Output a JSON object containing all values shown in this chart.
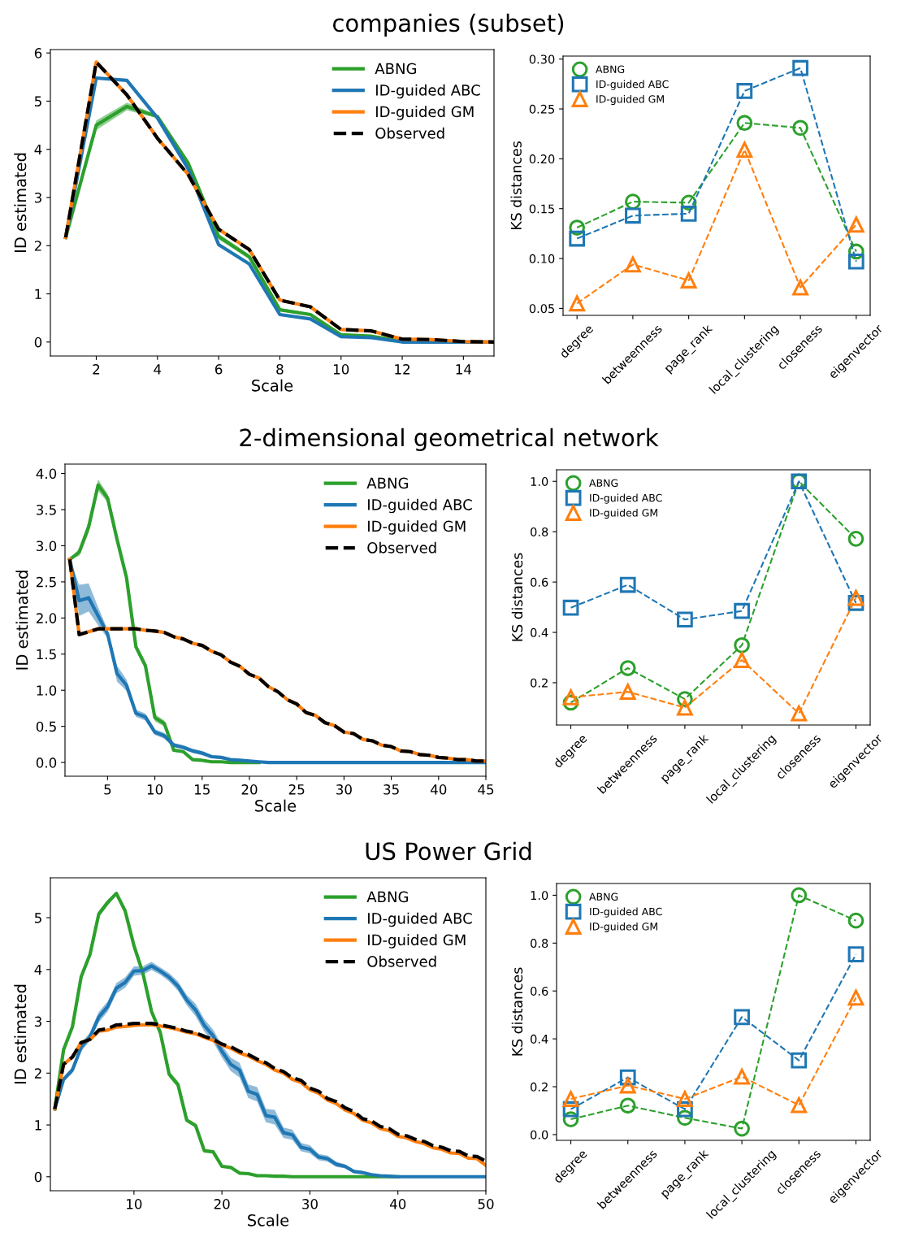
{
  "chart_data": [
    {
      "type": "line",
      "title": "companies (subset)",
      "xlabel": "Scale",
      "ylabel": "ID estimated",
      "legend": "top right",
      "xlim": [
        0.5,
        15
      ],
      "xticks": [
        2,
        4,
        6,
        8,
        10,
        12,
        14
      ],
      "ylim": [
        -0.29,
        6.07
      ],
      "yticks": [
        0,
        1,
        2,
        3,
        4,
        5,
        6
      ],
      "x": [
        1,
        2,
        3,
        4,
        5,
        6,
        7,
        8,
        9,
        10,
        11,
        12,
        13,
        14,
        15
      ],
      "series": [
        {
          "name": "ABNG",
          "color": "#2ca02c",
          "values": [
            2.17,
            4.5,
            4.89,
            4.68,
            3.72,
            2.19,
            1.77,
            0.67,
            0.57,
            0.15,
            0.12,
            0.02,
            0.01,
            null,
            null
          ],
          "lower": [
            2.17,
            4.4,
            4.81,
            4.65,
            3.69,
            2.13,
            1.72,
            0.64,
            0.54,
            0.13,
            0.1,
            0.01,
            0,
            null,
            null
          ],
          "upper": [
            2.17,
            4.6,
            4.97,
            4.71,
            3.75,
            2.25,
            1.82,
            0.7,
            0.6,
            0.17,
            0.14,
            0.03,
            0.02,
            null,
            null
          ]
        },
        {
          "name": "ID-guided ABC",
          "color": "#1f77b4",
          "values": [
            2.17,
            5.48,
            5.43,
            4.65,
            3.6,
            2.02,
            1.62,
            0.57,
            0.48,
            0.11,
            0.09,
            0,
            0,
            0,
            0
          ]
        },
        {
          "name": "ID-guided GM",
          "color": "#ff7f0e",
          "values": [
            2.17,
            5.81,
            5.13,
            4.23,
            3.48,
            2.34,
            1.92,
            0.87,
            0.73,
            0.26,
            0.23,
            0.06,
            0.05,
            0.01,
            0
          ]
        },
        {
          "name": "Observed",
          "color": "#000000",
          "line_style": "dashed",
          "values": [
            2.17,
            5.81,
            5.13,
            4.23,
            3.48,
            2.34,
            1.92,
            0.87,
            0.73,
            0.26,
            0.23,
            0.06,
            0.05,
            0.01,
            0
          ]
        }
      ]
    },
    {
      "type": "line",
      "ylabel": "KS distances",
      "legend": "top left",
      "line_style": "dashed",
      "ylim": [
        0.043,
        0.303
      ],
      "yticks": [
        0.05,
        {
          "value": 0.1,
          "label": "0.10"
        },
        0.15,
        {
          "value": 0.2,
          "label": "0.20"
        },
        0.25,
        {
          "value": 0.3,
          "label": "0.30"
        }
      ],
      "categories": [
        "degree",
        "betweenness",
        "page_rank",
        "local_clustering",
        "closeness",
        "eigenvector"
      ],
      "series": [
        {
          "name": "ABNG",
          "color": "#2ca02c",
          "marker": "circle",
          "values": [
            0.131,
            0.157,
            0.156,
            0.236,
            0.231,
            0.107
          ]
        },
        {
          "name": "ID-guided ABC",
          "color": "#1f77b4",
          "marker": "square",
          "values": [
            0.12,
            0.143,
            0.145,
            0.268,
            0.291,
            0.097
          ]
        },
        {
          "name": "ID-guided GM",
          "color": "#ff7f0e",
          "marker": "triangle",
          "values": [
            0.055,
            0.094,
            0.078,
            0.209,
            0.071,
            0.134
          ]
        }
      ]
    },
    {
      "type": "line",
      "title": "2-dimensional geometrical network",
      "xlabel": "Scale",
      "ylabel": "ID estimated",
      "legend": "top right",
      "xlim": [
        0.5,
        45
      ],
      "xticks": [
        5,
        10,
        15,
        20,
        25,
        30,
        35,
        40,
        45
      ],
      "ylim": [
        -0.19,
        4.13
      ],
      "yticks": [
        {
          "value": 0,
          "label": "0.0"
        },
        0.5,
        {
          "value": 1,
          "label": "1.0"
        },
        1.5,
        {
          "value": 2,
          "label": "2.0"
        },
        2.5,
        {
          "value": 3,
          "label": "3.0"
        },
        3.5,
        {
          "value": 4,
          "label": "4.0"
        }
      ],
      "x": [
        1,
        2,
        3,
        4,
        5,
        6,
        7,
        8,
        9,
        10,
        11,
        12,
        13,
        14,
        15,
        16,
        17,
        18,
        19,
        20,
        21,
        22,
        23,
        24,
        25,
        26,
        27,
        28,
        29,
        30,
        31,
        32,
        33,
        34,
        35,
        36,
        37,
        38,
        39,
        40,
        41,
        42,
        43,
        44,
        45
      ],
      "series": [
        {
          "name": "ABNG",
          "color": "#2ca02c",
          "values": [
            2.81,
            2.91,
            3.26,
            3.84,
            3.66,
            3.09,
            2.56,
            1.6,
            1.34,
            0.62,
            0.54,
            0.17,
            0.15,
            0.04,
            0.03,
            0.01,
            0.01,
            0,
            0,
            0,
            0,
            null,
            null,
            null,
            null,
            null,
            null,
            null,
            null,
            null,
            null,
            null,
            null,
            null,
            null,
            null,
            null,
            null,
            null,
            null,
            null,
            null,
            null,
            null,
            null
          ],
          "lower": [
            2.81,
            2.86,
            3.18,
            3.76,
            3.6,
            3.05,
            2.52,
            1.55,
            1.29,
            0.57,
            0.5,
            0.15,
            0.13,
            0.03,
            0.02,
            0,
            0,
            0,
            0,
            0,
            0,
            null,
            null,
            null,
            null,
            null,
            null,
            null,
            null,
            null,
            null,
            null,
            null,
            null,
            null,
            null,
            null,
            null,
            null,
            null,
            null,
            null,
            null,
            null,
            null
          ],
          "upper": [
            2.81,
            2.96,
            3.34,
            3.92,
            3.72,
            3.13,
            2.6,
            1.65,
            1.39,
            0.67,
            0.58,
            0.19,
            0.17,
            0.05,
            0.04,
            0.02,
            0.02,
            0,
            0,
            0,
            0,
            null,
            null,
            null,
            null,
            null,
            null,
            null,
            null,
            null,
            null,
            null,
            null,
            null,
            null,
            null,
            null,
            null,
            null,
            null,
            null,
            null,
            null,
            null,
            null
          ]
        },
        {
          "name": "ID-guided ABC",
          "color": "#1f77b4",
          "values": [
            2.81,
            2.24,
            2.28,
            2.03,
            1.78,
            1.23,
            1.07,
            0.68,
            0.63,
            0.42,
            0.37,
            0.24,
            0.21,
            0.16,
            0.13,
            0.08,
            0.07,
            0.04,
            0.03,
            0.02,
            0.01,
            0,
            0,
            0,
            0,
            0,
            0,
            0,
            0,
            0,
            0,
            0,
            0,
            0,
            0,
            0,
            0,
            0,
            0,
            0,
            0,
            0,
            0,
            0,
            0
          ],
          "lower": [
            2.81,
            2.03,
            2.09,
            1.9,
            1.72,
            1.12,
            0.99,
            0.63,
            0.58,
            0.38,
            0.33,
            0.21,
            0.18,
            0.13,
            0.1,
            0.06,
            0.05,
            0.03,
            0.02,
            0.01,
            0,
            0,
            0,
            0,
            0,
            0,
            0,
            0,
            0,
            0,
            0,
            0,
            0,
            0,
            0,
            0,
            0,
            0,
            0,
            0,
            0,
            0,
            0,
            0,
            0
          ],
          "upper": [
            2.81,
            2.46,
            2.48,
            2.15,
            1.84,
            1.34,
            1.15,
            0.73,
            0.68,
            0.46,
            0.41,
            0.27,
            0.24,
            0.19,
            0.16,
            0.1,
            0.09,
            0.05,
            0.04,
            0.03,
            0.02,
            0,
            0,
            0,
            0,
            0,
            0,
            0,
            0,
            0,
            0,
            0,
            0,
            0,
            0,
            0,
            0,
            0,
            0,
            0,
            0,
            0,
            0,
            0,
            0
          ]
        },
        {
          "name": "ID-guided GM",
          "color": "#ff7f0e",
          "values": [
            2.81,
            1.77,
            1.81,
            1.85,
            1.85,
            1.85,
            1.85,
            1.85,
            1.83,
            1.82,
            1.8,
            1.74,
            1.71,
            1.65,
            1.62,
            1.54,
            1.49,
            1.39,
            1.33,
            1.22,
            1.17,
            1.05,
            0.98,
            0.87,
            0.81,
            0.69,
            0.65,
            0.55,
            0.51,
            0.42,
            0.4,
            0.32,
            0.3,
            0.24,
            0.22,
            0.16,
            0.15,
            0.11,
            0.1,
            0.07,
            0.06,
            0.04,
            0.04,
            0.02,
            0.02
          ]
        },
        {
          "name": "Observed",
          "color": "#000000",
          "line_style": "dashed",
          "values": [
            2.81,
            1.77,
            1.81,
            1.85,
            1.85,
            1.85,
            1.85,
            1.85,
            1.83,
            1.82,
            1.8,
            1.74,
            1.71,
            1.65,
            1.62,
            1.54,
            1.49,
            1.39,
            1.33,
            1.22,
            1.17,
            1.05,
            0.98,
            0.87,
            0.81,
            0.69,
            0.65,
            0.55,
            0.51,
            0.42,
            0.4,
            0.32,
            0.3,
            0.24,
            0.22,
            0.16,
            0.15,
            0.11,
            0.1,
            0.07,
            0.06,
            0.04,
            0.04,
            0.02,
            0.02
          ]
        }
      ]
    },
    {
      "type": "line",
      "ylabel": "KS distances",
      "legend": "top left",
      "line_style": "dashed",
      "ylim": [
        0.032,
        1.046
      ],
      "yticks": [
        0.2,
        0.4,
        0.6,
        0.8,
        {
          "value": 1,
          "label": "1.0"
        }
      ],
      "categories": [
        "degree",
        "betweenness",
        "page_rank",
        "local_clustering",
        "closeness",
        "eigenvector"
      ],
      "series": [
        {
          "name": "ABNG",
          "color": "#2ca02c",
          "marker": "circle",
          "values": [
            0.121,
            0.258,
            0.135,
            0.349,
            1.0,
            0.772
          ]
        },
        {
          "name": "ID-guided ABC",
          "color": "#1f77b4",
          "marker": "square",
          "values": [
            0.498,
            0.589,
            0.451,
            0.485,
            1.0,
            0.517
          ]
        },
        {
          "name": "ID-guided GM",
          "color": "#ff7f0e",
          "marker": "triangle",
          "values": [
            0.142,
            0.164,
            0.101,
            0.29,
            0.078,
            0.537
          ]
        }
      ]
    },
    {
      "type": "line",
      "title": "US Power Grid",
      "xlabel": "Scale",
      "ylabel": "ID estimated",
      "legend": "top right",
      "xlim": [
        0.5,
        50
      ],
      "xticks": [
        10,
        20,
        30,
        40,
        50
      ],
      "ylim": [
        -0.27,
        5.77
      ],
      "yticks": [
        0,
        1,
        2,
        3,
        4,
        5
      ],
      "x": [
        1,
        2,
        3,
        4,
        5,
        6,
        7,
        8,
        9,
        10,
        11,
        12,
        13,
        14,
        15,
        16,
        17,
        18,
        19,
        20,
        21,
        22,
        23,
        24,
        25,
        26,
        27,
        28,
        29,
        30,
        31,
        32,
        33,
        34,
        35,
        36,
        37,
        38,
        39,
        40,
        41,
        42,
        43,
        44,
        45,
        46,
        47,
        48,
        49,
        50
      ],
      "series": [
        {
          "name": "ABNG",
          "color": "#2ca02c",
          "values": [
            1.31,
            2.45,
            2.89,
            3.86,
            4.29,
            5.07,
            5.29,
            5.47,
            5.13,
            4.46,
            3.94,
            3.19,
            2.78,
            1.98,
            1.78,
            1.09,
            0.99,
            0.5,
            0.48,
            0.2,
            0.18,
            0.07,
            0.06,
            0.02,
            0.02,
            0.01,
            0.01,
            0,
            0,
            0,
            0,
            0,
            0,
            0,
            0,
            0,
            0,
            0,
            0,
            0,
            null,
            null,
            null,
            null,
            null,
            null,
            null,
            null,
            null,
            null
          ],
          "lower": [
            1.31,
            2.4,
            2.84,
            3.8,
            4.23,
            5.01,
            5.23,
            5.44,
            5.1,
            4.43,
            3.91,
            3.16,
            2.74,
            1.92,
            1.72,
            1.05,
            0.95,
            0.47,
            0.45,
            0.18,
            0.16,
            0.06,
            0.05,
            0.01,
            0.01,
            0,
            0,
            0,
            0,
            0,
            0,
            0,
            0,
            0,
            0,
            0,
            0,
            0,
            0,
            0,
            null,
            null,
            null,
            null,
            null,
            null,
            null,
            null,
            null,
            null
          ],
          "upper": [
            1.31,
            2.5,
            2.94,
            3.92,
            4.35,
            5.13,
            5.35,
            5.5,
            5.16,
            4.49,
            3.97,
            3.22,
            2.82,
            2.04,
            1.84,
            1.13,
            1.03,
            0.53,
            0.51,
            0.22,
            0.2,
            0.08,
            0.07,
            0.03,
            0.03,
            0.02,
            0.02,
            0,
            0,
            0,
            0,
            0,
            0,
            0,
            0,
            0,
            0,
            0,
            0,
            0,
            null,
            null,
            null,
            null,
            null,
            null,
            null,
            null,
            null,
            null
          ]
        },
        {
          "name": "ID-guided ABC",
          "color": "#1f77b4",
          "values": [
            1.31,
            1.88,
            2.06,
            2.5,
            2.7,
            3.08,
            3.28,
            3.64,
            3.75,
            3.97,
            3.98,
            4.07,
            3.97,
            3.85,
            3.68,
            3.41,
            3.22,
            2.92,
            2.72,
            2.42,
            2.17,
            2.06,
            1.65,
            1.59,
            1.18,
            1.15,
            0.85,
            0.81,
            0.57,
            0.53,
            0.38,
            0.35,
            0.24,
            0.2,
            0.1,
            0.08,
            0.04,
            0.02,
            0.01,
            0,
            0,
            0,
            0,
            0,
            0,
            0,
            0,
            0,
            0,
            0
          ],
          "lower": [
            1.31,
            1.84,
            2.0,
            2.42,
            2.62,
            2.98,
            3.18,
            3.54,
            3.65,
            3.88,
            3.9,
            3.99,
            3.9,
            3.77,
            3.59,
            3.31,
            3.1,
            2.8,
            2.6,
            2.3,
            2.04,
            1.92,
            1.52,
            1.45,
            1.05,
            1.01,
            0.75,
            0.71,
            0.49,
            0.45,
            0.32,
            0.29,
            0.19,
            0.16,
            0.07,
            0.05,
            0.02,
            0.01,
            0,
            0,
            0,
            0,
            0,
            0,
            0,
            0,
            0,
            0,
            0,
            0
          ],
          "upper": [
            1.31,
            1.92,
            2.12,
            2.58,
            2.78,
            3.18,
            3.38,
            3.74,
            3.85,
            4.06,
            4.06,
            4.15,
            4.04,
            3.93,
            3.77,
            3.51,
            3.34,
            3.04,
            2.84,
            2.54,
            2.3,
            2.2,
            1.78,
            1.73,
            1.31,
            1.29,
            0.95,
            0.91,
            0.65,
            0.61,
            0.44,
            0.41,
            0.29,
            0.24,
            0.13,
            0.11,
            0.06,
            0.03,
            0.02,
            0,
            0,
            0,
            0,
            0,
            0,
            0,
            0,
            0,
            0,
            0
          ]
        },
        {
          "name": "ID-guided GM",
          "color": "#ff7f0e",
          "values": [
            1.31,
            2.17,
            2.31,
            2.59,
            2.65,
            2.81,
            2.83,
            2.89,
            2.9,
            2.92,
            2.93,
            2.93,
            2.91,
            2.88,
            2.84,
            2.79,
            2.76,
            2.69,
            2.63,
            2.54,
            2.48,
            2.39,
            2.33,
            2.24,
            2.17,
            2.06,
            2.0,
            1.88,
            1.82,
            1.68,
            1.61,
            1.48,
            1.41,
            1.29,
            1.22,
            1.09,
            1.04,
            0.93,
            0.89,
            0.78,
            0.75,
            0.68,
            0.64,
            0.56,
            0.53,
            0.46,
            0.45,
            0.36,
            0.35,
            0.22
          ]
        },
        {
          "name": "Observed",
          "color": "#000000",
          "line_style": "dashed",
          "values": [
            1.31,
            2.17,
            2.31,
            2.59,
            2.65,
            2.83,
            2.86,
            2.93,
            2.94,
            2.96,
            2.96,
            2.96,
            2.93,
            2.9,
            2.86,
            2.81,
            2.78,
            2.71,
            2.65,
            2.56,
            2.51,
            2.42,
            2.36,
            2.27,
            2.2,
            2.09,
            2.03,
            1.91,
            1.86,
            1.71,
            1.65,
            1.51,
            1.45,
            1.33,
            1.26,
            1.12,
            1.08,
            0.97,
            0.93,
            0.82,
            0.79,
            0.72,
            0.68,
            0.6,
            0.57,
            0.5,
            0.49,
            0.4,
            0.39,
            0.3
          ]
        }
      ]
    },
    {
      "type": "line",
      "ylabel": "KS distances",
      "legend": "top left",
      "line_style": "dashed",
      "ylim": [
        -0.024,
        1.049
      ],
      "yticks": [
        {
          "value": 0,
          "label": "0.0"
        },
        0.2,
        0.4,
        0.6,
        0.8,
        {
          "value": 1,
          "label": "1.0"
        }
      ],
      "categories": [
        "degree",
        "betweenness",
        "page_rank",
        "local_clustering",
        "closeness",
        "eigenvector"
      ],
      "series": [
        {
          "name": "ABNG",
          "color": "#2ca02c",
          "marker": "circle",
          "values": [
            0.064,
            0.121,
            0.07,
            0.025,
            1.0,
            0.894
          ]
        },
        {
          "name": "ID-guided ABC",
          "color": "#1f77b4",
          "marker": "square",
          "values": [
            0.106,
            0.239,
            0.106,
            0.491,
            0.31,
            0.753
          ]
        },
        {
          "name": "ID-guided GM",
          "color": "#ff7f0e",
          "marker": "triangle",
          "values": [
            0.149,
            0.205,
            0.149,
            0.242,
            0.123,
            0.572
          ]
        }
      ]
    }
  ]
}
